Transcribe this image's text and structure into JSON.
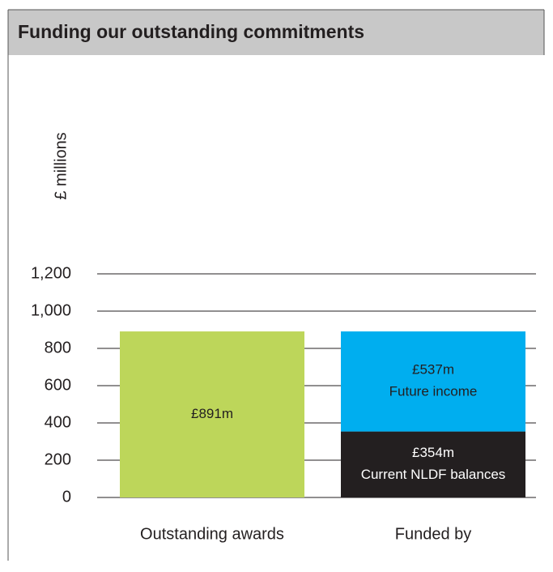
{
  "chart_data": {
    "type": "bar",
    "stacked": true,
    "title": "Funding our outstanding commitments",
    "y_label": "£ millions",
    "categories": [
      "Outstanding awards",
      "Funded by"
    ],
    "series": [
      {
        "color": "#bdd65a",
        "values": [
          891,
          null
        ],
        "value_labels": [
          "£891m",
          null
        ]
      },
      {
        "name": "Current NLDF balances",
        "color": "#231f20",
        "values": [
          null,
          354
        ],
        "value_labels": [
          null,
          "£354m"
        ]
      },
      {
        "name": "Future income",
        "color": "#00aeef",
        "values": [
          null,
          537
        ],
        "value_labels": [
          null,
          "£537m"
        ]
      }
    ],
    "ylim": [
      0,
      1200
    ],
    "yticks": [
      0,
      200,
      400,
      600,
      800,
      {
        "value": 1000,
        "label": "1,000"
      },
      {
        "value": 1200,
        "label": "1,200"
      }
    ],
    "grid": true
  }
}
